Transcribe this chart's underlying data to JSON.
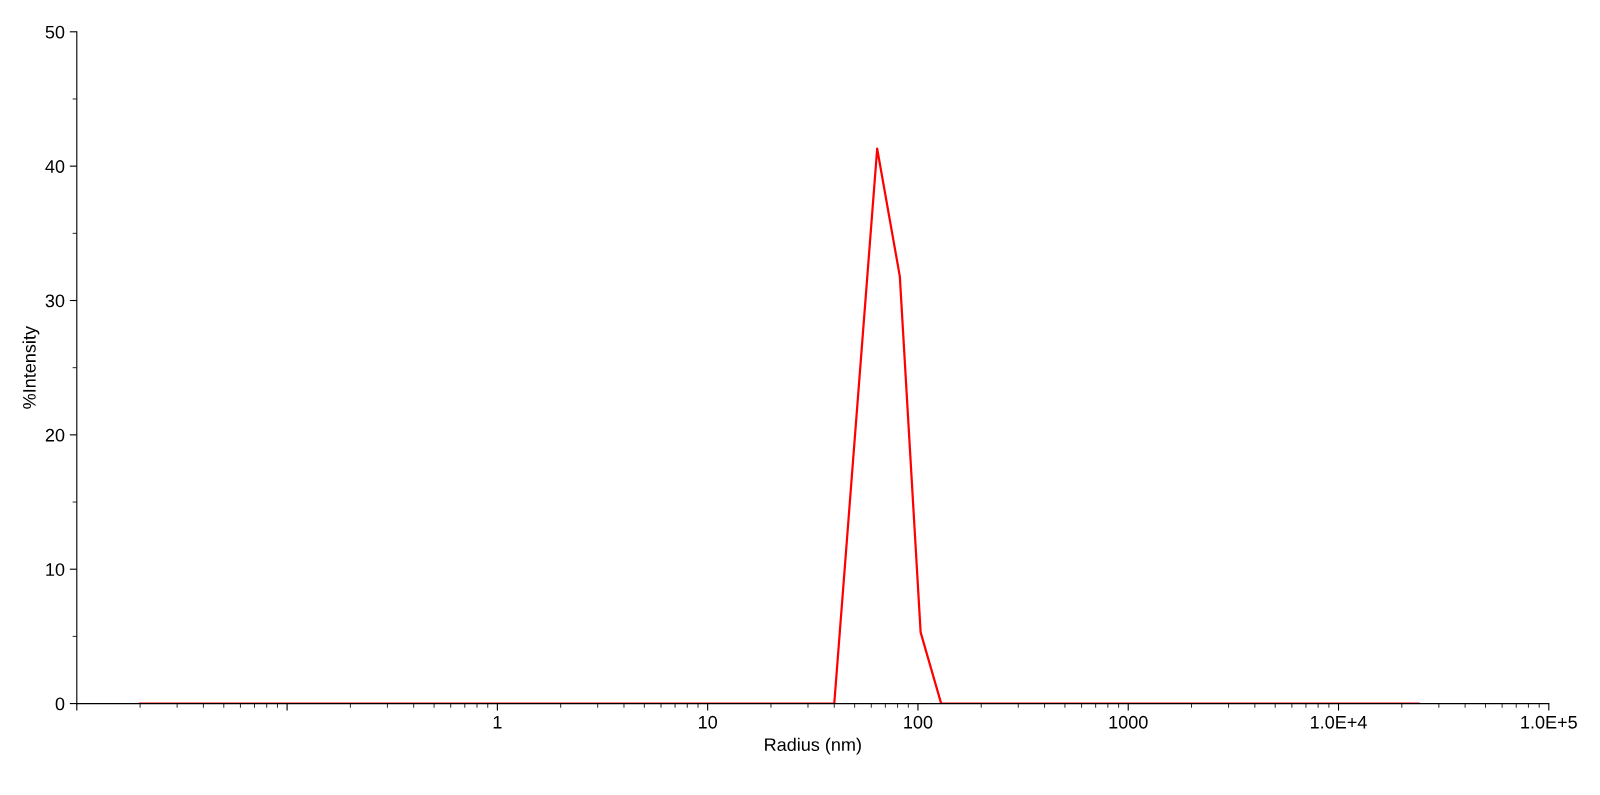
{
  "chart_data": {
    "type": "line",
    "xlabel": "Radius (nm)",
    "ylabel": "%Intensity",
    "x": [
      0.02,
      40,
      64,
      82,
      103,
      129,
      24000
    ],
    "series": [
      {
        "color": "#ff0000",
        "values": [
          0,
          0,
          41.3,
          31.8,
          5.3,
          0,
          0
        ]
      }
    ],
    "log": "x",
    "xlim": [
      0.01,
      100000
    ],
    "xticks": [
      {
        "value": 0.01,
        "label": null
      },
      {
        "value": 0.1,
        "label": null
      },
      1,
      10,
      100,
      1000,
      {
        "value": 10000,
        "label": "1.0E+4"
      },
      {
        "value": 100000,
        "label": "1.0E+5"
      }
    ],
    "ylim": [
      0,
      50
    ],
    "yticks": [
      0,
      10,
      20,
      30,
      40,
      50
    ],
    "grid": false,
    "legend": false,
    "marker": "none",
    "line_style": "solid"
  }
}
